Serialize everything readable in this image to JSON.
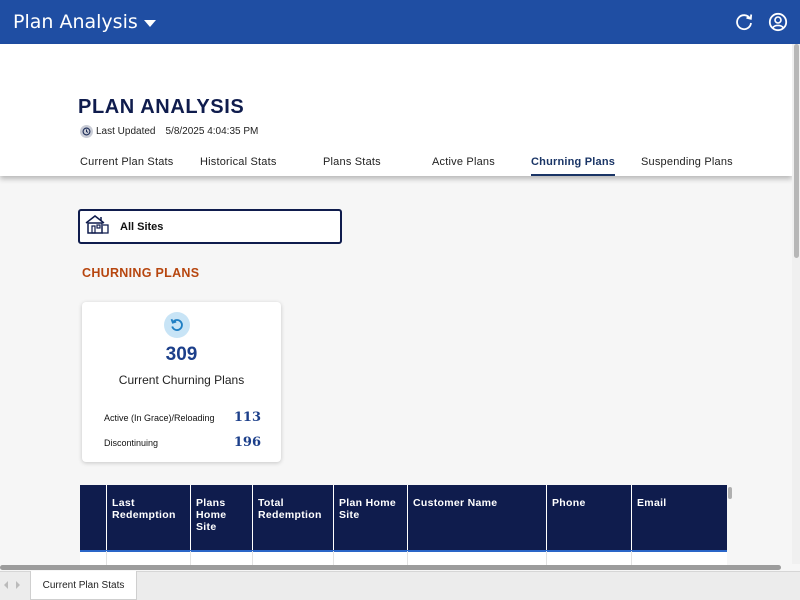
{
  "app": {
    "title": "Plan Analysis"
  },
  "header": {
    "page_title": "PLAN ANALYSIS",
    "last_updated_label": "Last Updated",
    "last_updated_value": "5/8/2025 4:04:35 PM"
  },
  "tabs": [
    {
      "label": "Current Plan Stats",
      "active": false
    },
    {
      "label": "Historical Stats",
      "active": false
    },
    {
      "label": "Plans Stats",
      "active": false
    },
    {
      "label": "Active Plans",
      "active": false
    },
    {
      "label": "Churning Plans",
      "active": true
    },
    {
      "label": "Suspending Plans",
      "active": false
    }
  ],
  "site_selector": {
    "label": "All Sites",
    "icon": "house-icon"
  },
  "section": {
    "title": "CHURNING PLANS"
  },
  "stat_card": {
    "icon": "refresh-icon",
    "total": "309",
    "label": "Current Churning Plans",
    "rows": [
      {
        "label": "Active (In Grace)/Reloading",
        "value": "113"
      },
      {
        "label": "Discontinuing",
        "value": "196"
      }
    ]
  },
  "table": {
    "columns": [
      "",
      "Last Redemption",
      "Plans Home Site",
      "Total Redemption",
      "Plan Home Site",
      "Customer Name",
      "Phone",
      "Email"
    ]
  },
  "bottom_bar": {
    "sheet_tab": "Current Plan Stats"
  },
  "colors": {
    "topbar": "#1f4ea3",
    "title_navy": "#0f1c4d",
    "accent_orange": "#b7460f",
    "stat_blue": "#1c3f8a"
  }
}
